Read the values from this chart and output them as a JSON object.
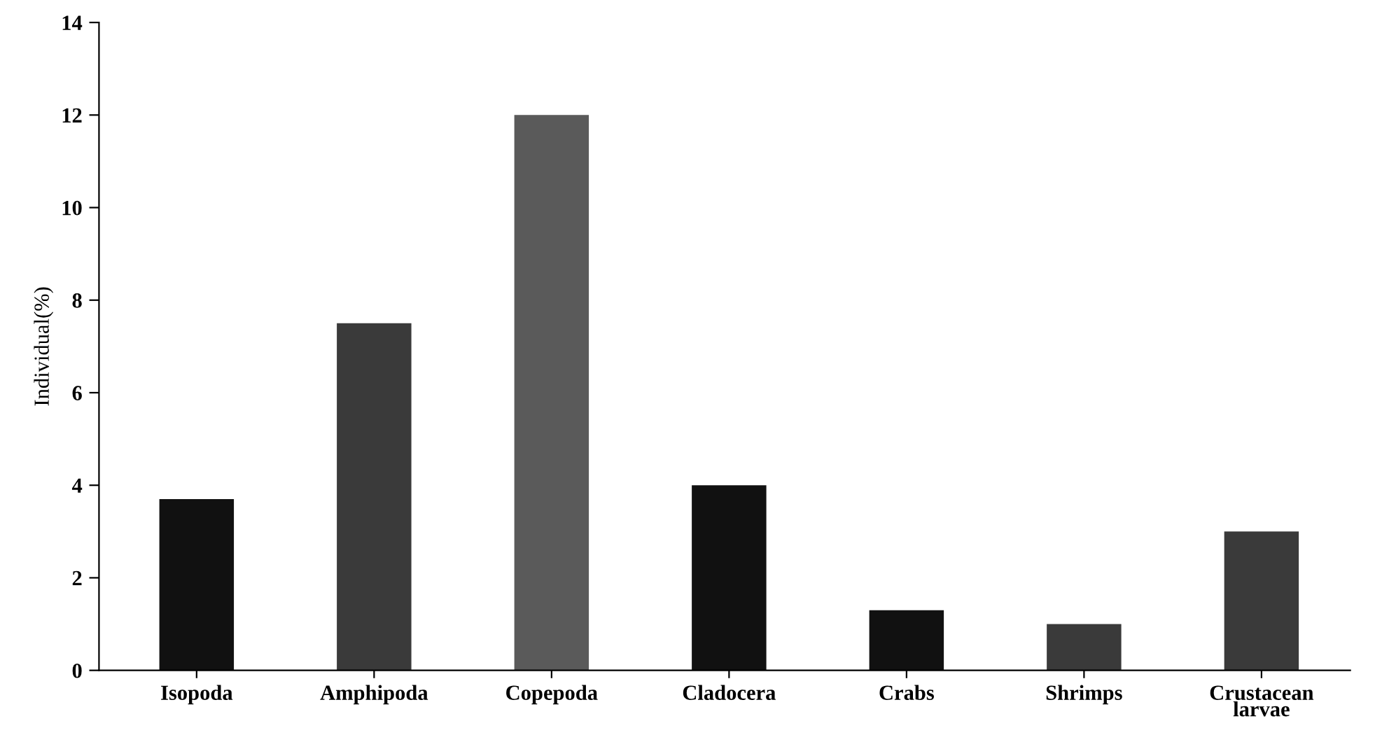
{
  "chart_data": {
    "type": "bar",
    "ylabel": "Individual(%)",
    "categories": [
      "Isopoda",
      "Amphipoda",
      "Copepoda",
      "Cladocera",
      "Crabs",
      "Shrimps",
      "Crustacean\nlarvae"
    ],
    "values": [
      3.7,
      7.5,
      12.0,
      4.0,
      1.3,
      1.0,
      3.0
    ],
    "colors": [
      "#111111",
      "#3a3a3a",
      "#5a5a5a",
      "#111111",
      "#111111",
      "#3a3a3a",
      "#3a3a3a"
    ],
    "ylim": [
      0,
      14
    ],
    "yticks": [
      0,
      2,
      4,
      6,
      8,
      10,
      12,
      14
    ],
    "grid": false,
    "legend": false
  }
}
